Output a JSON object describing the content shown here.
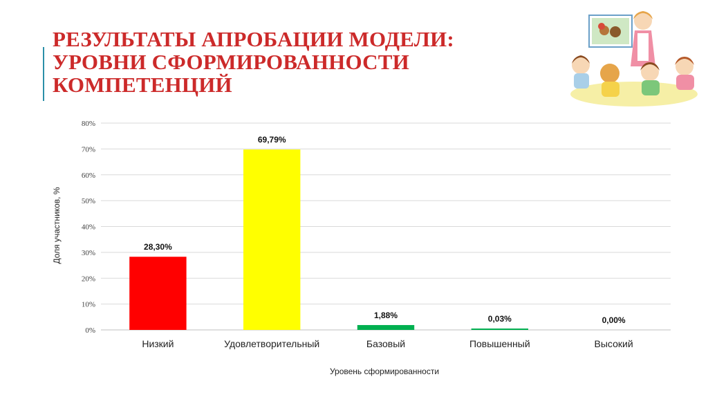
{
  "title_lines": [
    "РЕЗУЛЬТАТЫ АПРОБАЦИИ МОДЕЛИ:",
    "УРОВНИ СФОРМИРОВАННОСТИ",
    "КОМПЕТЕНЦИЙ"
  ],
  "illustration": {
    "icon": "teacher-with-children-illustration"
  },
  "chart_data": {
    "type": "bar",
    "categories": [
      "Низкий",
      "Удовлетворительный",
      "Базовый",
      "Повышенный",
      "Высокий"
    ],
    "values": [
      28.3,
      69.79,
      1.88,
      0.03,
      0.0
    ],
    "data_labels": [
      "28,30%",
      "69,79%",
      "1,88%",
      "0,03%",
      "0,00%"
    ],
    "colors": [
      "#ff0000",
      "#ffff00",
      "#00b050",
      "#00b050",
      "#00b050"
    ],
    "xlabel": "Уровень сформированности",
    "ylabel": "Доля участников, %",
    "ylim": [
      0,
      80
    ],
    "yticks": [
      0,
      10,
      20,
      30,
      40,
      50,
      60,
      70,
      80
    ],
    "ytick_labels": [
      "0%",
      "10%",
      "20%",
      "30%",
      "40%",
      "50%",
      "60%",
      "70%",
      "80%"
    ],
    "grid": true,
    "legend": "none"
  }
}
